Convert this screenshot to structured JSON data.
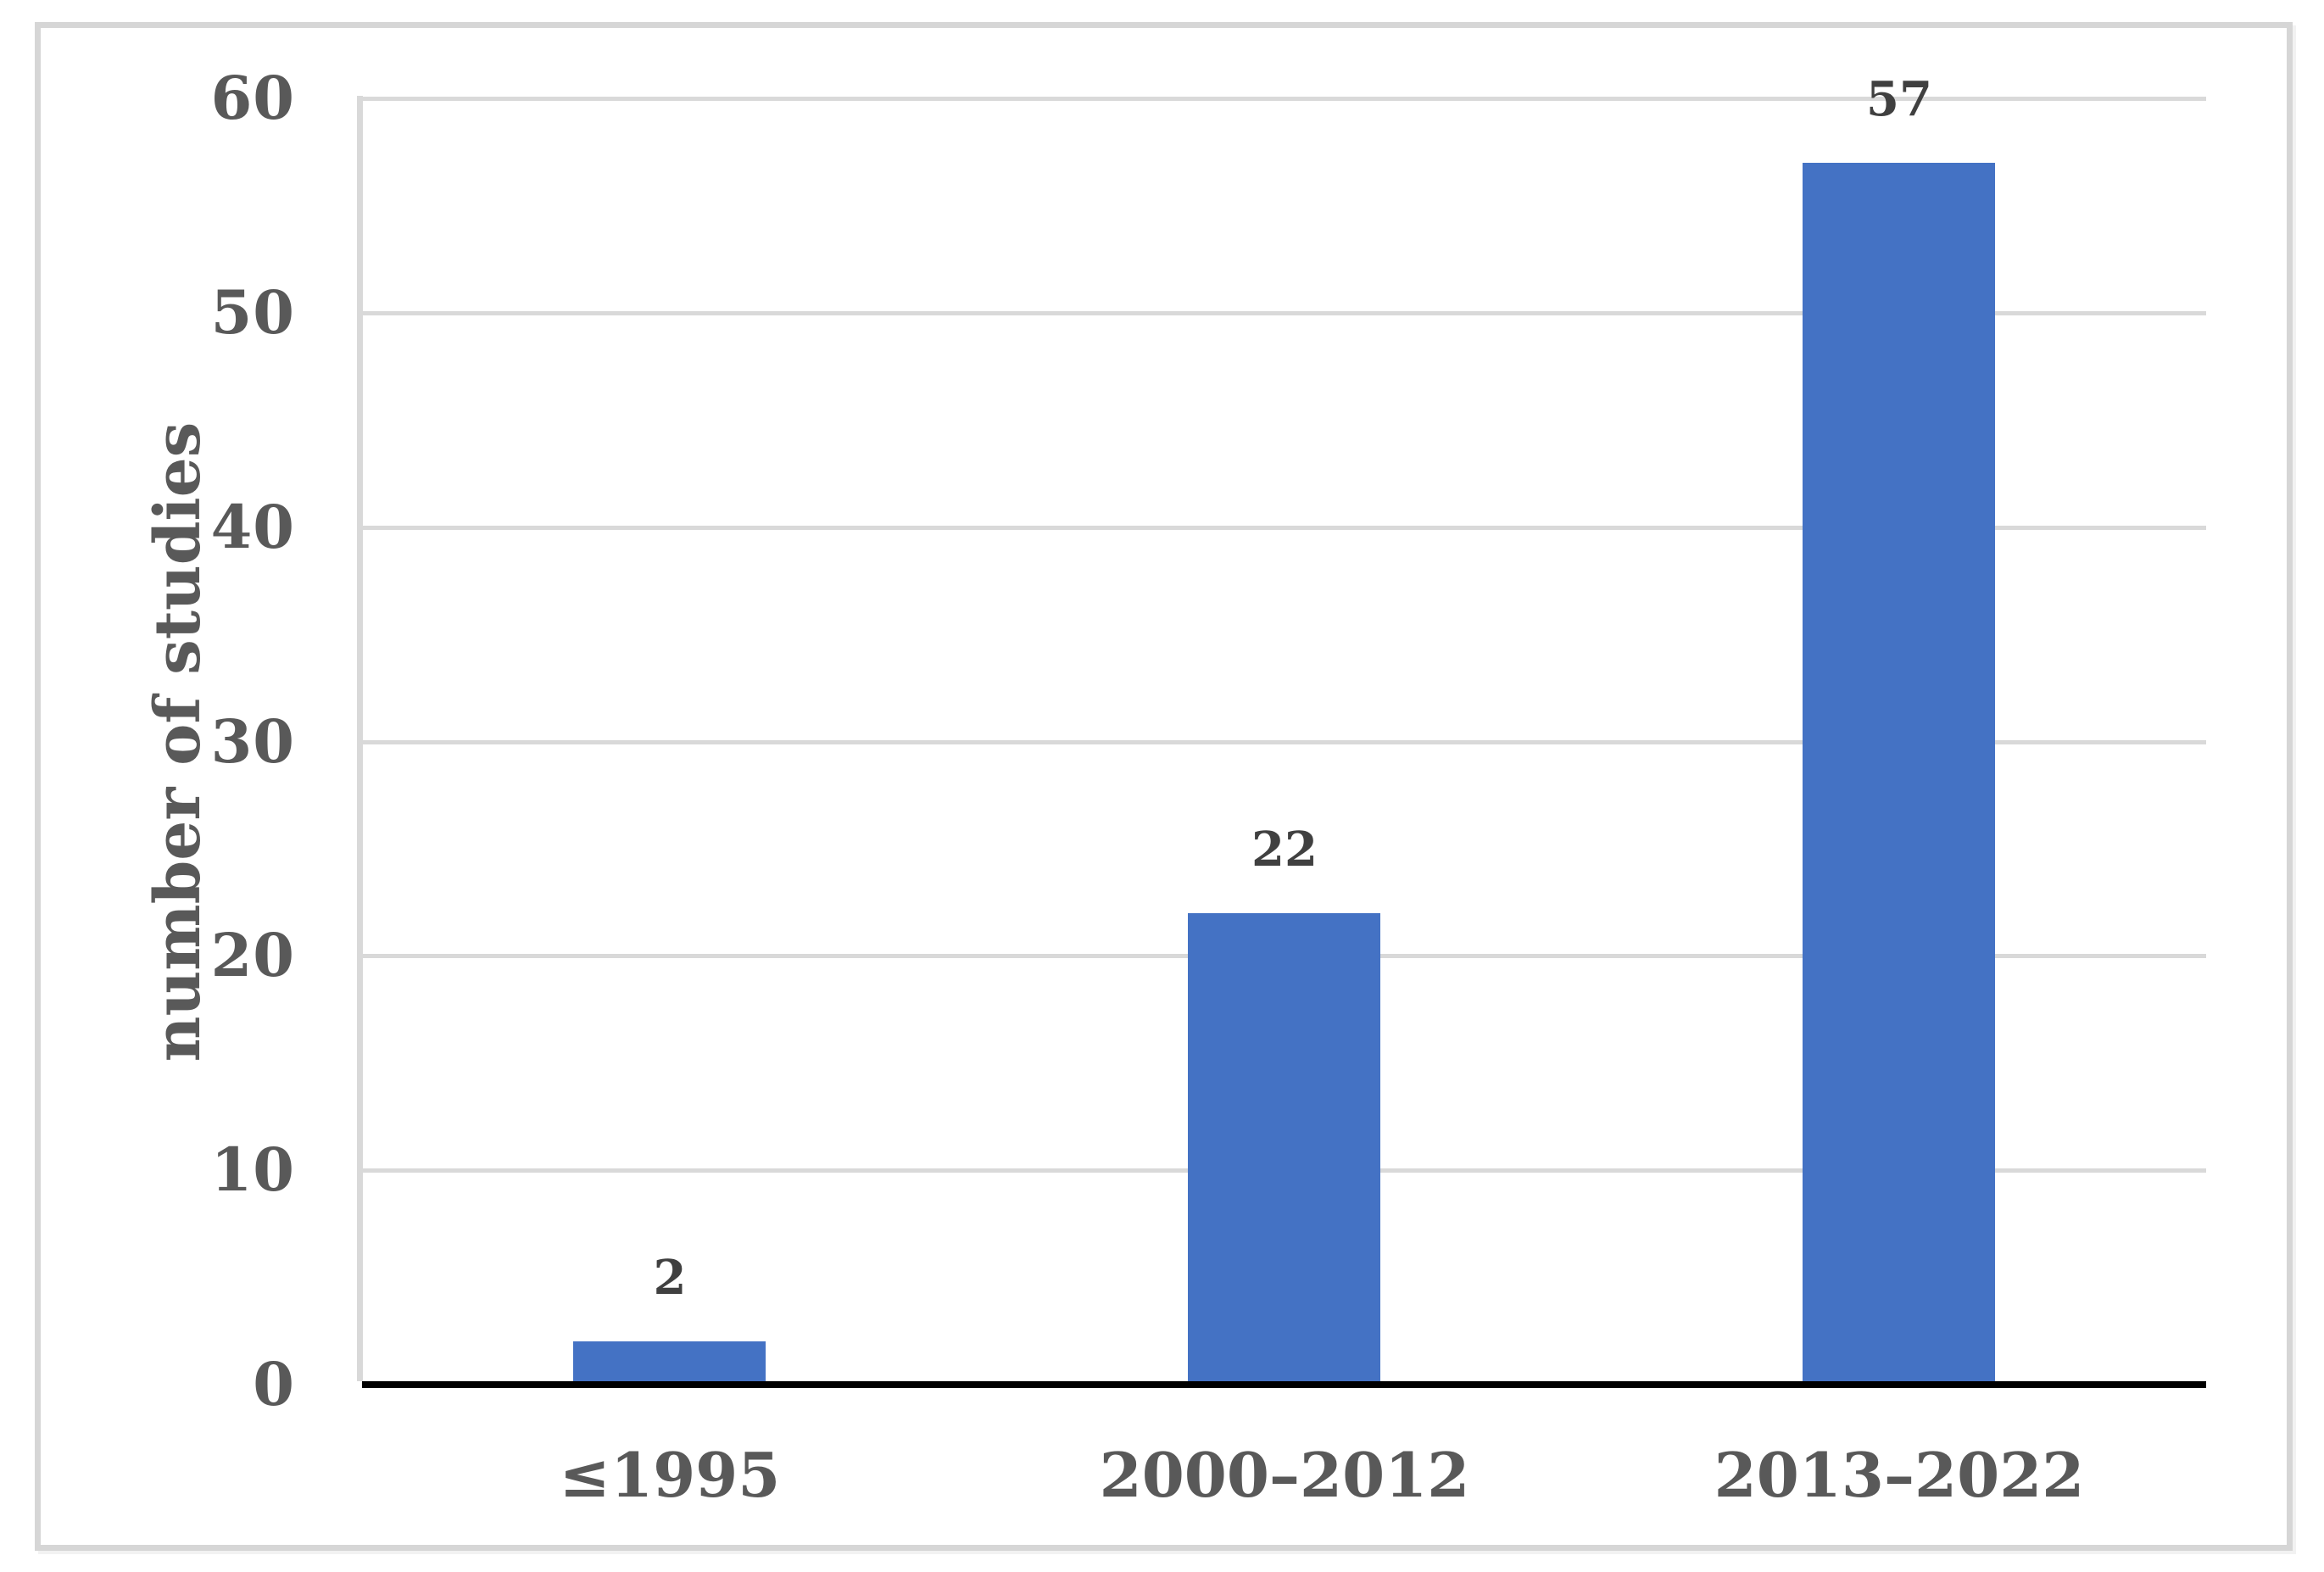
{
  "figure": {
    "background": "#FFFFFF",
    "border_color": "#D6D6D6"
  },
  "chart_data": {
    "type": "bar",
    "title": "",
    "xlabel": "",
    "ylabel": "number of studies",
    "categories": [
      "≤1995",
      "2000–2012",
      "2013–2022"
    ],
    "values": [
      2,
      22,
      57
    ],
    "data_labels": [
      "2",
      "22",
      "57"
    ],
    "yticks": [
      "0",
      "10",
      "20",
      "30",
      "40",
      "50",
      "60"
    ],
    "ytick_values": [
      0,
      10,
      20,
      30,
      40,
      50,
      60
    ],
    "ylim": [
      0,
      60
    ],
    "grid": "horizontal-gridlines",
    "legend": "none",
    "colors": {
      "bar": "#4472C4",
      "axis_text": "#595959",
      "data_label_text": "#404040",
      "gridline": "#D9D9D9",
      "x_axis_line": "#000000",
      "y_axis_line": "#D9D9D9"
    }
  }
}
